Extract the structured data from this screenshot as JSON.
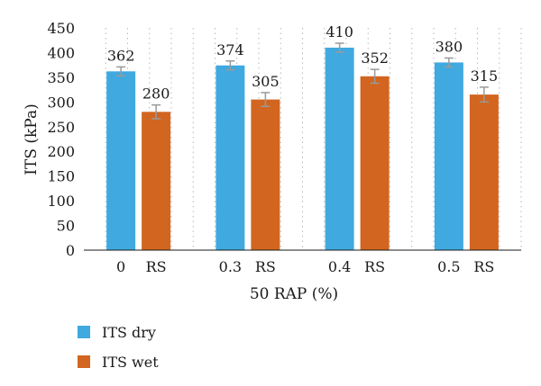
{
  "chart_data": {
    "type": "bar",
    "groups": [
      "0",
      "0.3",
      "0.4",
      "0.5"
    ],
    "bar_labels": [
      "RS",
      "RS",
      "RS",
      "RS"
    ],
    "series": [
      {
        "name": "ITS dry",
        "values": [
          362,
          374,
          410,
          380
        ],
        "errors": [
          9,
          9,
          9,
          9
        ]
      },
      {
        "name": "ITS wet",
        "values": [
          280,
          305,
          352,
          315
        ],
        "errors": [
          14,
          14,
          14,
          15
        ]
      }
    ],
    "xlabel": "50 RAP (%)",
    "ylabel": "ITS (kPa)",
    "ylim": [
      0,
      450
    ],
    "yticks": [
      0,
      50,
      100,
      150,
      200,
      250,
      300,
      350,
      400,
      450
    ],
    "grid": "dotted vertical",
    "legend": "bottom-left",
    "colors": {
      "ITS dry": "#3fa9e0",
      "ITS wet": "#d2651f",
      "error_bar": "#9a9a9a"
    }
  }
}
